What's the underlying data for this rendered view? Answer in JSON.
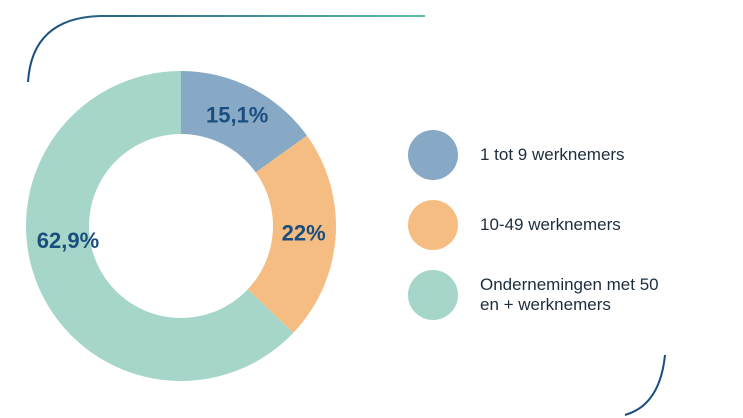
{
  "chart_data": {
    "type": "donut",
    "categories": [
      "1 tot 9 werknemers",
      "10-49 werknemers",
      "Ondernemingen met 50 en + werknemers"
    ],
    "values": [
      15.1,
      22,
      62.9
    ],
    "value_labels": [
      "15,1%",
      "22%",
      "62,9%"
    ],
    "colors": [
      "#87a9c6",
      "#f5bd82",
      "#a5d6c9"
    ],
    "legend": "right"
  }
}
